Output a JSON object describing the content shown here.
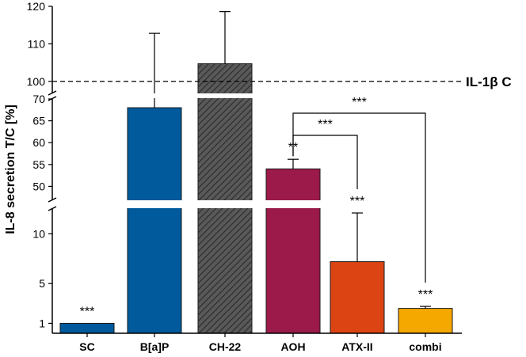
{
  "chart_data": {
    "type": "bar",
    "xlabel": "",
    "ylabel": "IL-8 secretion T/C [%]",
    "axis_break": true,
    "y_segments": [
      {
        "range": [
          0,
          12.5
        ],
        "ticks": [
          1,
          5,
          10
        ]
      },
      {
        "range": [
          47,
          70
        ],
        "ticks": [
          50,
          55,
          60,
          65,
          70
        ]
      },
      {
        "range": [
          97,
          120
        ],
        "ticks": [
          100,
          110,
          120
        ]
      }
    ],
    "categories": [
      "SC",
      "B[a]P",
      "CH-22",
      "AOH",
      "ATX-II",
      "combi"
    ],
    "values": [
      1,
      68,
      104.7,
      54,
      7.2,
      2.5
    ],
    "errors": [
      0,
      44.8,
      13.9,
      2.2,
      4.9,
      0.2
    ],
    "colors": [
      "#005a9c",
      "#005a9c",
      "#595959",
      "#9b1a4a",
      "#dc4414",
      "#f5a800"
    ],
    "patterns": [
      "solid",
      "solid",
      "hatched",
      "solid",
      "solid",
      "solid"
    ],
    "significance": [
      "***",
      "",
      "",
      "**",
      "***",
      "***"
    ],
    "reference_line": {
      "value": 100,
      "label": "IL-1β C",
      "style": "dashed"
    },
    "brackets": [
      {
        "from": "AOH",
        "to": "ATX-II",
        "label": "***"
      },
      {
        "from": "AOH",
        "to": "combi",
        "label": "***"
      }
    ],
    "grid": false,
    "legend": "none"
  }
}
